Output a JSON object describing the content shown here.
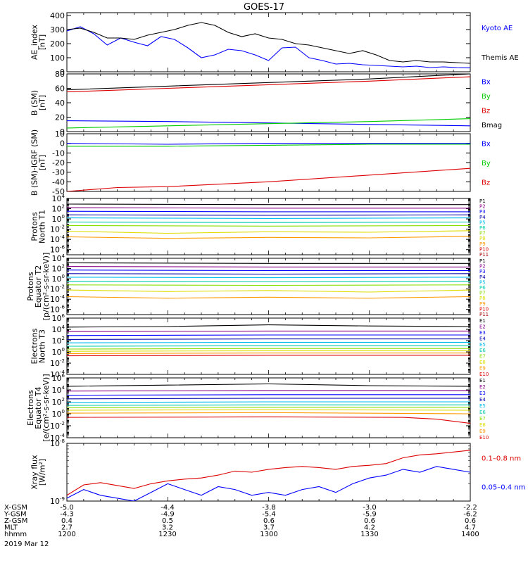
{
  "title": "GOES-17",
  "colors": {
    "black": "#000000",
    "blue": "#0000ff",
    "green": "#00cc00",
    "red": "#dd0000",
    "navy": "#0000aa",
    "cyan": "#00bbee",
    "teal": "#00ccaa",
    "lime": "#88dd00",
    "yellow": "#dddd00",
    "orange": "#ff9900",
    "darkred": "#aa0000",
    "purple": "#880088"
  },
  "ticks_x": [
    "1200",
    "1230",
    "1300",
    "1330",
    "1400"
  ],
  "orbit": {
    "labels": [
      "X-GSM",
      "Y-GSM",
      "Z-GSM",
      "MLT",
      "hhmm"
    ],
    "date": "2019 Mar 12",
    "columns": [
      [
        "-5.0",
        "-4.3",
        "0.4",
        "2.7",
        "1200"
      ],
      [
        "-4.4",
        "-4.9",
        "0.5",
        "3.2",
        "1230"
      ],
      [
        "-3.8",
        "-5.4",
        "0.6",
        "3.7",
        "1300"
      ],
      [
        "-3.0",
        "-5.9",
        "0.6",
        "4.2",
        "1330"
      ],
      [
        "-2.2",
        "-6.2",
        "0.6",
        "4.7",
        "1400"
      ]
    ]
  },
  "chart_data": [
    {
      "type": "line",
      "ylabel": [
        "AE_index",
        "[nT]"
      ],
      "ylim": [
        0,
        420
      ],
      "yticks": [
        "0",
        "100",
        "200",
        "300",
        "400"
      ],
      "xlim": [
        0,
        120
      ],
      "series": [
        {
          "name": "Kyoto AE",
          "color": "blue",
          "x": [
            0,
            4,
            8,
            12,
            16,
            20,
            24,
            28,
            32,
            36,
            40,
            44,
            48,
            52,
            56,
            60,
            64,
            68,
            72,
            76,
            80,
            84,
            88,
            92,
            96,
            100,
            104,
            108,
            112,
            116,
            120
          ],
          "y": [
            290,
            320,
            270,
            190,
            240,
            210,
            185,
            250,
            230,
            170,
            100,
            120,
            160,
            150,
            120,
            80,
            170,
            175,
            100,
            80,
            55,
            60,
            50,
            45,
            40,
            35,
            40,
            30,
            35,
            30,
            28
          ]
        },
        {
          "name": "Themis AE",
          "color": "black",
          "x": [
            0,
            4,
            8,
            12,
            16,
            20,
            24,
            28,
            32,
            36,
            40,
            44,
            48,
            52,
            56,
            60,
            64,
            68,
            72,
            76,
            80,
            84,
            88,
            92,
            96,
            100,
            104,
            108,
            112,
            116,
            120
          ],
          "y": [
            300,
            310,
            280,
            240,
            240,
            230,
            260,
            280,
            300,
            330,
            350,
            330,
            280,
            250,
            270,
            240,
            230,
            200,
            190,
            170,
            150,
            130,
            150,
            120,
            80,
            70,
            80,
            70,
            70,
            65,
            60
          ]
        }
      ]
    },
    {
      "type": "line",
      "ylabel": [
        "B (SM)",
        "[nT]"
      ],
      "ylim": [
        0,
        80
      ],
      "yticks": [
        "0",
        "20",
        "40",
        "60",
        "80"
      ],
      "xlim": [
        0,
        120
      ],
      "series": [
        {
          "name": "Bx",
          "color": "blue",
          "x": [
            0,
            30,
            60,
            90,
            120
          ],
          "y": [
            15,
            14,
            12,
            10,
            8
          ]
        },
        {
          "name": "By",
          "color": "green",
          "x": [
            0,
            30,
            60,
            90,
            120
          ],
          "y": [
            5,
            8,
            11,
            14,
            18
          ]
        },
        {
          "name": "Bz",
          "color": "red",
          "x": [
            0,
            30,
            60,
            90,
            120
          ],
          "y": [
            55,
            60,
            65,
            70,
            76
          ]
        },
        {
          "name": "Bmag",
          "color": "black",
          "x": [
            0,
            30,
            60,
            90,
            120
          ],
          "y": [
            58,
            63,
            68,
            73,
            80
          ]
        }
      ]
    },
    {
      "type": "line",
      "ylabel": [
        "B (SM)-IGRF (SM)",
        "[nT]"
      ],
      "ylim": [
        -50,
        10
      ],
      "yticks": [
        "-50",
        "-40",
        "-30",
        "-20",
        "-10",
        "0",
        "10"
      ],
      "xlim": [
        0,
        120
      ],
      "series": [
        {
          "name": "Bx",
          "color": "blue",
          "x": [
            0,
            30,
            60,
            90,
            120
          ],
          "y": [
            0,
            -1,
            0,
            0,
            0
          ]
        },
        {
          "name": "By",
          "color": "green",
          "x": [
            0,
            30,
            60,
            90,
            120
          ],
          "y": [
            -3,
            -3,
            -2,
            -1,
            -1
          ]
        },
        {
          "name": "Bz",
          "color": "red",
          "x": [
            0,
            15,
            30,
            60,
            90,
            120
          ],
          "y": [
            -50,
            -46,
            -45,
            -40,
            -33,
            -26
          ]
        }
      ]
    },
    {
      "type": "line",
      "log": true,
      "ylabel": [
        "Protons",
        "North T1"
      ],
      "ylim": [
        -7,
        4
      ],
      "yticks": [
        "10^4",
        "10^2",
        "10^0",
        "10^-2",
        "10^-4",
        "10^-6"
      ],
      "xlim": [
        0,
        120
      ],
      "series": [
        {
          "name": "P1",
          "color": "black",
          "x": [
            0,
            60,
            120
          ],
          "y": [
            2.9,
            2.8,
            2.8
          ]
        },
        {
          "name": "P2",
          "color": "purple",
          "x": [
            0,
            60,
            120
          ],
          "y": [
            2.2,
            2.1,
            2.1
          ]
        },
        {
          "name": "P3",
          "color": "blue",
          "x": [
            0,
            60,
            120
          ],
          "y": [
            1.5,
            1.4,
            1.4
          ]
        },
        {
          "name": "P4",
          "color": "navy",
          "x": [
            0,
            60,
            120
          ],
          "y": [
            0.8,
            0.7,
            0.8
          ]
        },
        {
          "name": "P5",
          "color": "cyan",
          "x": [
            0,
            60,
            120
          ],
          "y": [
            0.2,
            0.1,
            0.2
          ]
        },
        {
          "name": "P6",
          "color": "teal",
          "x": [
            0,
            60,
            120
          ],
          "y": [
            -0.6,
            -0.7,
            -0.6
          ]
        },
        {
          "name": "P7",
          "color": "lime",
          "x": [
            0,
            60,
            120
          ],
          "y": [
            -1.3,
            -1.4,
            -1.3
          ]
        },
        {
          "name": "P8",
          "color": "yellow",
          "x": [
            0,
            30,
            60,
            90,
            120
          ],
          "y": [
            -2.4,
            -2.8,
            -2.5,
            -2.6,
            -2.3
          ]
        },
        {
          "name": "P9",
          "color": "orange",
          "x": [
            0,
            30,
            60,
            90,
            120
          ],
          "y": [
            -3.5,
            -3.8,
            -3.6,
            -3.7,
            -3.4
          ]
        },
        {
          "name": "P10",
          "color": "red",
          "x": [],
          "y": []
        },
        {
          "name": "P11",
          "color": "darkred",
          "x": [],
          "y": []
        }
      ]
    },
    {
      "type": "line",
      "log": true,
      "ylabel": [
        "Protons",
        "Equator T2",
        "[p/(cm²-s-sr-keV)]"
      ],
      "ylim": [
        -7,
        4
      ],
      "yticks": [
        "10^4",
        "10^2",
        "10^0",
        "10^-2",
        "10^-4",
        "10^-6"
      ],
      "xlim": [
        0,
        120
      ],
      "series": [
        {
          "name": "P1",
          "color": "black",
          "x": [
            0,
            60,
            120
          ],
          "y": [
            3.1,
            3.0,
            3.0
          ]
        },
        {
          "name": "P2",
          "color": "purple",
          "x": [
            0,
            60,
            120
          ],
          "y": [
            2.4,
            2.3,
            2.3
          ]
        },
        {
          "name": "P3",
          "color": "blue",
          "x": [
            0,
            60,
            120
          ],
          "y": [
            1.7,
            1.6,
            1.6
          ]
        },
        {
          "name": "P4",
          "color": "navy",
          "x": [
            0,
            60,
            120
          ],
          "y": [
            1.0,
            0.9,
            1.0
          ]
        },
        {
          "name": "P5",
          "color": "cyan",
          "x": [
            0,
            60,
            120
          ],
          "y": [
            0.3,
            0.2,
            0.3
          ]
        },
        {
          "name": "P6",
          "color": "teal",
          "x": [
            0,
            60,
            120
          ],
          "y": [
            -0.5,
            -0.6,
            -0.5
          ]
        },
        {
          "name": "P7",
          "color": "lime",
          "x": [
            0,
            60,
            120
          ],
          "y": [
            -1.2,
            -1.3,
            -1.2
          ]
        },
        {
          "name": "P8",
          "color": "yellow",
          "x": [
            0,
            30,
            60,
            90,
            120
          ],
          "y": [
            -2.2,
            -2.5,
            -2.3,
            -2.6,
            -2.2
          ]
        },
        {
          "name": "P9",
          "color": "orange",
          "x": [
            0,
            30,
            60,
            90,
            120
          ],
          "y": [
            -3.5,
            -3.8,
            -3.6,
            -3.8,
            -3.5
          ]
        },
        {
          "name": "P10",
          "color": "red",
          "x": [],
          "y": []
        },
        {
          "name": "P11",
          "color": "darkred",
          "x": [],
          "y": []
        }
      ]
    },
    {
      "type": "line",
      "log": true,
      "ylabel": [
        "Electrons",
        "North T3"
      ],
      "ylim": [
        -4,
        6
      ],
      "yticks": [
        "10^6",
        "10^4",
        "10^2",
        "10^0",
        "10^-2",
        "10^-4"
      ],
      "xlim": [
        0,
        120
      ],
      "series": [
        {
          "name": "E1",
          "color": "black",
          "x": [
            0,
            30,
            60,
            90,
            120
          ],
          "y": [
            4.4,
            4.5,
            4.8,
            4.6,
            4.5
          ]
        },
        {
          "name": "E2",
          "color": "purple",
          "x": [
            0,
            60,
            120
          ],
          "y": [
            3.6,
            3.7,
            3.7
          ]
        },
        {
          "name": "E3",
          "color": "blue",
          "x": [
            0,
            60,
            120
          ],
          "y": [
            2.9,
            3.0,
            3.0
          ]
        },
        {
          "name": "E4",
          "color": "navy",
          "x": [
            0,
            60,
            120
          ],
          "y": [
            2.2,
            2.3,
            2.3
          ]
        },
        {
          "name": "E5",
          "color": "cyan",
          "x": [
            0,
            60,
            120
          ],
          "y": [
            1.6,
            1.7,
            1.7
          ]
        },
        {
          "name": "E6",
          "color": "teal",
          "x": [
            0,
            60,
            120
          ],
          "y": [
            1.0,
            1.1,
            1.1
          ]
        },
        {
          "name": "E7",
          "color": "lime",
          "x": [
            0,
            60,
            120
          ],
          "y": [
            0.5,
            0.6,
            0.6
          ]
        },
        {
          "name": "E8",
          "color": "yellow",
          "x": [
            0,
            60,
            120
          ],
          "y": [
            0.1,
            0.2,
            0.2
          ]
        },
        {
          "name": "E9",
          "color": "orange",
          "x": [
            0,
            60,
            120
          ],
          "y": [
            -0.3,
            -0.2,
            -0.2
          ]
        },
        {
          "name": "E10",
          "color": "red",
          "x": [
            0,
            60,
            120
          ],
          "y": [
            -0.7,
            -0.6,
            -0.6
          ]
        }
      ]
    },
    {
      "type": "line",
      "log": true,
      "ylabel": [
        "Electrons",
        "Equator T4",
        "[e/(cm²-s-sr-keV)]"
      ],
      "ylim": [
        -4,
        6
      ],
      "yticks": [
        "10^6",
        "10^4",
        "10^2",
        "10^0",
        "10^-2",
        "10^-4"
      ],
      "xlim": [
        0,
        120
      ],
      "series": [
        {
          "name": "E1",
          "color": "black",
          "x": [
            0,
            30,
            60,
            90,
            120
          ],
          "y": [
            4.6,
            4.8,
            5.0,
            4.7,
            4.6
          ]
        },
        {
          "name": "E2",
          "color": "purple",
          "x": [
            0,
            60,
            120
          ],
          "y": [
            3.8,
            3.9,
            3.9
          ]
        },
        {
          "name": "E3",
          "color": "blue",
          "x": [
            0,
            60,
            120
          ],
          "y": [
            3.1,
            3.2,
            3.2
          ]
        },
        {
          "name": "E4",
          "color": "navy",
          "x": [
            0,
            60,
            120
          ],
          "y": [
            2.5,
            2.6,
            2.6
          ]
        },
        {
          "name": "E5",
          "color": "cyan",
          "x": [
            0,
            60,
            120
          ],
          "y": [
            1.9,
            2.0,
            2.0
          ]
        },
        {
          "name": "E6",
          "color": "teal",
          "x": [
            0,
            60,
            120
          ],
          "y": [
            1.4,
            1.5,
            1.5
          ]
        },
        {
          "name": "E7",
          "color": "lime",
          "x": [
            0,
            60,
            120
          ],
          "y": [
            1.0,
            1.1,
            1.1
          ]
        },
        {
          "name": "E8",
          "color": "yellow",
          "x": [
            0,
            60,
            120
          ],
          "y": [
            0.6,
            0.7,
            0.6
          ]
        },
        {
          "name": "E9",
          "color": "orange",
          "x": [
            0,
            60,
            120
          ],
          "y": [
            0.1,
            0.2,
            0.0
          ]
        },
        {
          "name": "E10",
          "color": "red",
          "x": [
            0,
            60,
            100,
            110,
            120
          ],
          "y": [
            -0.6,
            -0.5,
            -0.6,
            -0.9,
            -1.6
          ]
        }
      ]
    },
    {
      "type": "line",
      "log": true,
      "ylabel": [
        "Xray flux",
        "[W/m²]"
      ],
      "ylim": [
        -9,
        -8
      ],
      "yticks": [
        "10^-8",
        "10^-9"
      ],
      "xlim": [
        0,
        120
      ],
      "series": [
        {
          "name": "0.1–0.8 nm",
          "color": "red",
          "x": [
            0,
            5,
            10,
            15,
            20,
            25,
            30,
            35,
            40,
            45,
            50,
            55,
            60,
            65,
            70,
            75,
            80,
            85,
            90,
            95,
            100,
            105,
            110,
            115,
            120
          ],
          "y": [
            -8.9,
            -8.72,
            -8.68,
            -8.73,
            -8.78,
            -8.7,
            -8.65,
            -8.62,
            -8.6,
            -8.55,
            -8.48,
            -8.5,
            -8.45,
            -8.42,
            -8.4,
            -8.42,
            -8.45,
            -8.4,
            -8.38,
            -8.35,
            -8.25,
            -8.2,
            -8.18,
            -8.15,
            -8.12
          ]
        },
        {
          "name": "0.05–0.4 nm",
          "color": "blue",
          "x": [
            0,
            5,
            10,
            15,
            20,
            25,
            30,
            35,
            40,
            45,
            50,
            55,
            60,
            65,
            70,
            75,
            80,
            85,
            90,
            95,
            100,
            105,
            110,
            115,
            120
          ],
          "y": [
            -8.95,
            -8.8,
            -8.9,
            -8.95,
            -9.0,
            -8.85,
            -8.7,
            -8.8,
            -8.9,
            -8.75,
            -8.8,
            -8.9,
            -8.85,
            -8.9,
            -8.8,
            -8.75,
            -8.85,
            -8.7,
            -8.6,
            -8.55,
            -8.45,
            -8.5,
            -8.4,
            -8.45,
            -8.5
          ]
        }
      ]
    }
  ]
}
